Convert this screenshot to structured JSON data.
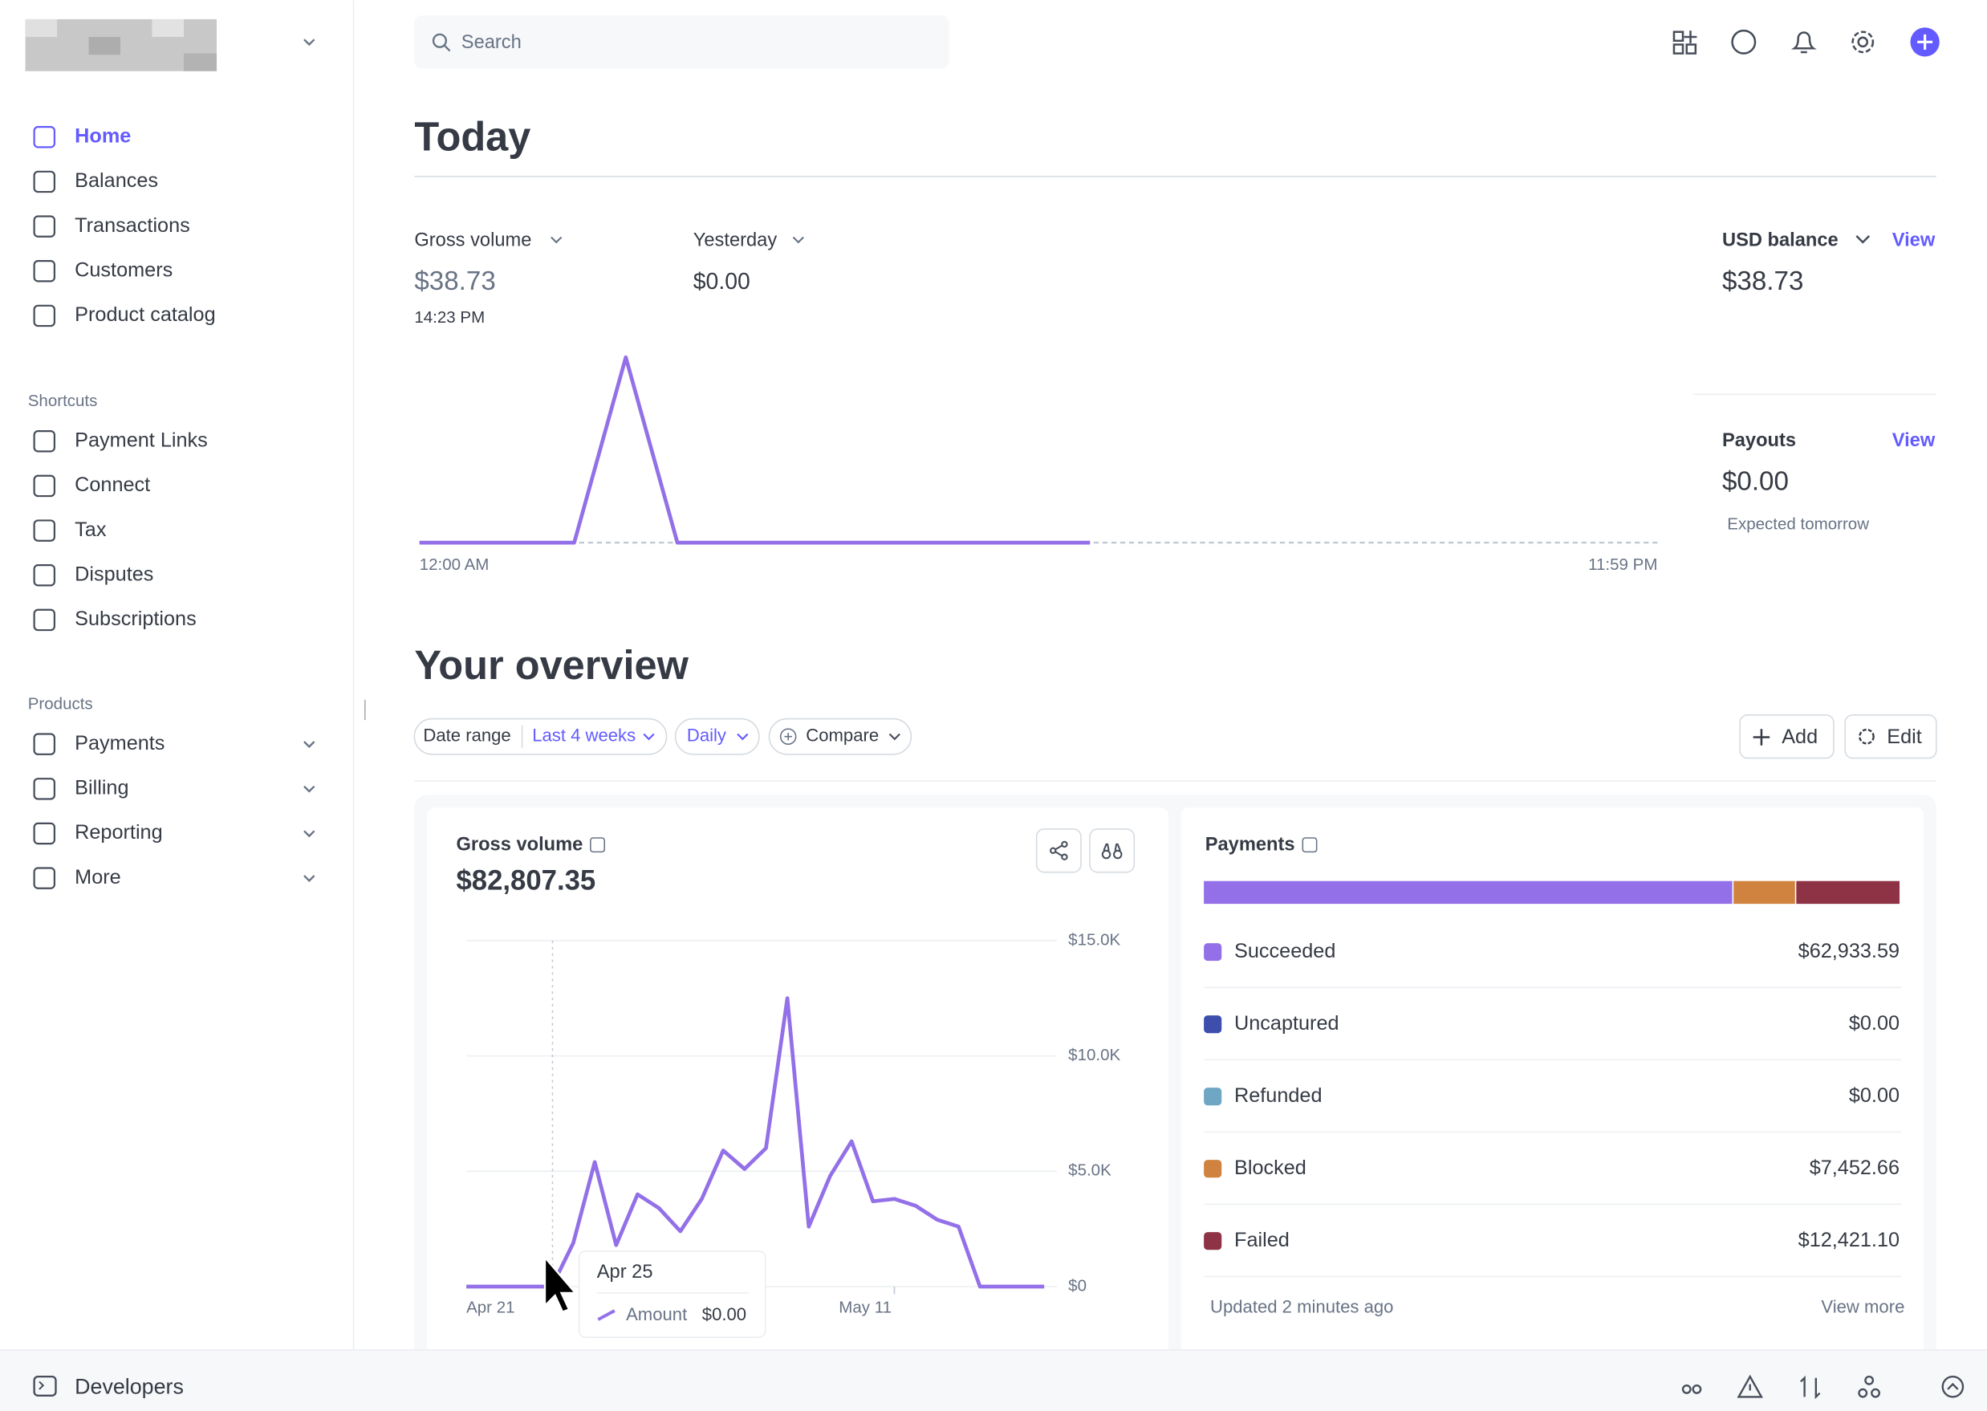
{
  "sidebar": {
    "nav": [
      "Home",
      "Balances",
      "Transactions",
      "Customers",
      "Product catalog"
    ],
    "shortcuts_label": "Shortcuts",
    "shortcuts": [
      "Payment Links",
      "Connect",
      "Tax",
      "Disputes",
      "Subscriptions"
    ],
    "products_label": "Products",
    "products": [
      "Payments",
      "Billing",
      "Reporting",
      "More"
    ],
    "developers": "Developers"
  },
  "search_placeholder": "Search",
  "today": {
    "title": "Today",
    "gross_volume_label": "Gross volume",
    "gross_volume": "$38.73",
    "time": "14:23 PM",
    "yesterday_label": "Yesterday",
    "yesterday_value": "$0.00",
    "usd_balance_label": "USD balance",
    "usd_balance_view": "View",
    "usd_balance": "$38.73",
    "payouts_label": "Payouts",
    "payouts_view": "View",
    "payouts_value": "$0.00",
    "payouts_note": "Expected tomorrow",
    "chart": {
      "type": "line",
      "x": [
        0,
        1,
        2,
        3,
        4,
        5,
        6,
        7,
        8,
        9,
        10,
        11,
        12,
        13
      ],
      "values": [
        0,
        0,
        0,
        0,
        38.73,
        0,
        0,
        0,
        0,
        0,
        0,
        0,
        0,
        0
      ],
      "xlim": [
        0,
        24
      ],
      "ylim": [
        0,
        40
      ],
      "x_start_label": "12:00 AM",
      "x_end_label": "11:59 PM",
      "color": "#9370e8"
    }
  },
  "overview": {
    "title": "Your overview",
    "date_range_label": "Date range",
    "date_range": "Last 4 weeks",
    "interval": "Daily",
    "compare": "Compare",
    "add": "Add",
    "edit": "Edit",
    "gross_volume": {
      "label": "Gross volume",
      "total": "$82,807.35",
      "chart": {
        "type": "line",
        "categories": [
          "Apr 21",
          null,
          null,
          null,
          null,
          null,
          null,
          null,
          null,
          null,
          null,
          null,
          null,
          null,
          null,
          null,
          null,
          null,
          null,
          null,
          "May 11",
          null,
          null,
          null,
          null,
          null,
          null,
          null
        ],
        "values": [
          0,
          0,
          0,
          0,
          0,
          1900,
          5400,
          1800,
          4000,
          3400,
          2400,
          3800,
          5900,
          5100,
          6000,
          12500,
          2600,
          4800,
          6300,
          3700,
          3800,
          3500,
          2900,
          2600,
          0,
          0,
          0,
          0
        ],
        "ylim": [
          0,
          15000
        ],
        "yticks": [
          {
            "value": 0,
            "label": "$0"
          },
          {
            "value": 5000,
            "label": "$5.0K"
          },
          {
            "value": 10000,
            "label": "$10.0K"
          },
          {
            "value": 15000,
            "label": "$15.0K"
          }
        ],
        "color": "#9370e8"
      },
      "tooltip": {
        "date": "Apr 25",
        "label": "Amount",
        "value": "$0.00"
      }
    },
    "payments": {
      "label": "Payments",
      "type": "stacked-bar",
      "rows": [
        {
          "name": "Succeeded",
          "color": "#9370e8",
          "value": 62933.59,
          "label": "$62,933.59"
        },
        {
          "name": "Uncaptured",
          "color": "#3d4eac",
          "value": 0,
          "label": "$0.00"
        },
        {
          "name": "Refunded",
          "color": "#6ea6c4",
          "value": 0,
          "label": "$0.00"
        },
        {
          "name": "Blocked",
          "color": "#d0823f",
          "value": 7452.66,
          "label": "$7,452.66"
        },
        {
          "name": "Failed",
          "color": "#8e3246",
          "value": 12421.1,
          "label": "$12,421.10"
        }
      ],
      "updated": "Updated 2 minutes ago",
      "view_more": "View more"
    }
  }
}
